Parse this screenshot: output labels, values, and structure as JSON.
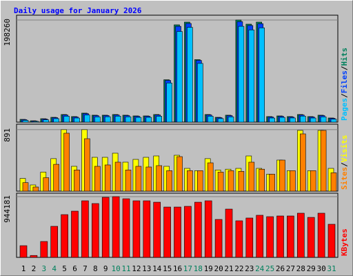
{
  "chart_data": [
    {
      "type": "bar",
      "title": "Daily usage for January 2026",
      "legend_separator": "/",
      "ylim": [
        0,
        207600
      ],
      "yticks": [
        198260
      ],
      "series": [
        {
          "name": "Hits",
          "color": "#00805c",
          "values": [
            5400,
            2700,
            6700,
            9400,
            14800,
            10800,
            17500,
            13500,
            13500,
            14800,
            13500,
            12100,
            12100,
            14800,
            82300,
            188900,
            194200,
            121400,
            14800,
            9400,
            13500,
            198260,
            190200,
            194200,
            10800,
            12100,
            10800,
            14800,
            10800,
            13500,
            8100
          ]
        },
        {
          "name": "Files",
          "color": "#0040ff",
          "values": [
            4800,
            2300,
            6000,
            8700,
            13900,
            10000,
            16600,
            12700,
            12800,
            13900,
            12700,
            11300,
            11400,
            13900,
            81000,
            186000,
            191500,
            119800,
            13900,
            8700,
            12700,
            195000,
            187600,
            191000,
            10000,
            11300,
            10000,
            13900,
            10000,
            12700,
            7400
          ]
        },
        {
          "name": "Pages",
          "color": "#00c0ff",
          "values": [
            3500,
            1500,
            4500,
            6800,
            11500,
            8000,
            13800,
            10200,
            10500,
            11600,
            10400,
            9200,
            9300,
            11400,
            76000,
            176000,
            184000,
            114000,
            11500,
            6900,
            10300,
            186000,
            179000,
            183000,
            8000,
            9200,
            8100,
            11700,
            8000,
            10300,
            5700
          ]
        }
      ]
    },
    {
      "type": "bar",
      "legend_separator": "/",
      "ylim": [
        0,
        970
      ],
      "yticks": [
        891
      ],
      "series": [
        {
          "name": "Visits",
          "color": "#ffff00",
          "values": [
            184,
            90,
            276,
            471,
            891,
            360,
            891,
            490,
            490,
            550,
            420,
            460,
            490,
            510,
            360,
            520,
            330,
            297,
            471,
            307,
            318,
            330,
            510,
            330,
            246,
            450,
            297,
            880,
            297,
            880,
            330
          ]
        },
        {
          "name": "Sites",
          "color": "#ff8000",
          "values": [
            123,
            60,
            195,
            389,
            840,
            307,
            760,
            360,
            380,
            420,
            307,
            360,
            350,
            370,
            297,
            500,
            297,
            297,
            410,
            276,
            297,
            287,
            420,
            318,
            246,
            450,
            297,
            830,
            297,
            880,
            266
          ]
        }
      ]
    },
    {
      "type": "bar",
      "ylim": [
        0,
        998000
      ],
      "yticks": [
        944181
      ],
      "categories": [
        "1",
        "2",
        "3",
        "4",
        "5",
        "6",
        "7",
        "8",
        "9",
        "10",
        "11",
        "12",
        "13",
        "14",
        "15",
        "16",
        "17",
        "18",
        "19",
        "20",
        "21",
        "22",
        "23",
        "24",
        "25",
        "26",
        "27",
        "28",
        "29",
        "30",
        "31"
      ],
      "category_colors": [
        "#000000",
        "#000000",
        "#00805c",
        "#00805c",
        "#000000",
        "#000000",
        "#000000",
        "#000000",
        "#000000",
        "#00805c",
        "#00805c",
        "#000000",
        "#000000",
        "#000000",
        "#000000",
        "#000000",
        "#00805c",
        "#00805c",
        "#000000",
        "#000000",
        "#000000",
        "#000000",
        "#000000",
        "#00805c",
        "#00805c",
        "#000000",
        "#000000",
        "#000000",
        "#000000",
        "#000000",
        "#00805c"
      ],
      "series": [
        {
          "name": "KBytes",
          "color": "#ff0000",
          "values": [
            182000,
            30000,
            247000,
            483000,
            665000,
            719000,
            880000,
            837000,
            934000,
            944181,
            912000,
            880000,
            880000,
            858000,
            783000,
            783000,
            794000,
            858000,
            880000,
            590000,
            751000,
            569000,
            612000,
            655000,
            633000,
            644000,
            644000,
            687000,
            622000,
            687000,
            515000
          ]
        }
      ]
    }
  ]
}
